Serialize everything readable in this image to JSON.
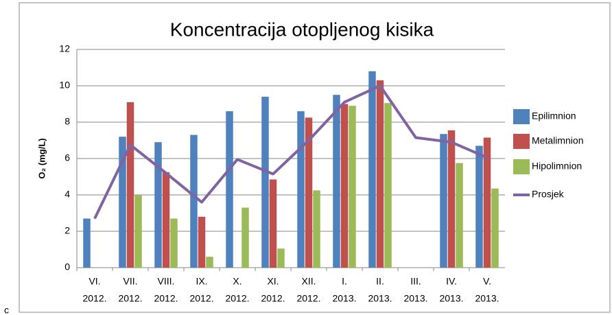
{
  "chart_data": {
    "type": "bar",
    "title": "Koncentracija otopljenog kisika",
    "y_label": "O₂ (mg/L)",
    "label": "c",
    "categories": [
      [
        "VI.",
        "2012."
      ],
      [
        "VII.",
        "2012."
      ],
      [
        "VIII.",
        "2012."
      ],
      [
        "IX.",
        "2012."
      ],
      [
        "X.",
        "2012."
      ],
      [
        "XI.",
        "2012."
      ],
      [
        "XII.",
        "2012."
      ],
      [
        "I.",
        "2013."
      ],
      [
        "II.",
        "2013."
      ],
      [
        "III.",
        "2013."
      ],
      [
        "IV.",
        "2013."
      ],
      [
        "V.",
        "2013."
      ]
    ],
    "series": [
      {
        "name": "Epilimnion",
        "type": "bar",
        "color": "#4f81bd",
        "values": [
          2.7,
          7.2,
          6.9,
          7.3,
          8.6,
          9.4,
          8.6,
          9.5,
          10.8,
          null,
          7.35,
          6.7
        ]
      },
      {
        "name": "Metalimnion",
        "type": "bar",
        "color": "#c0504d",
        "values": [
          null,
          9.1,
          5.25,
          2.8,
          null,
          4.85,
          8.25,
          9.0,
          10.3,
          null,
          7.55,
          7.15
        ]
      },
      {
        "name": "Hipolimnion",
        "type": "bar",
        "color": "#9bbb59",
        "values": [
          null,
          4.0,
          2.7,
          0.6,
          3.3,
          1.05,
          4.25,
          8.9,
          9.05,
          null,
          5.75,
          4.35
        ]
      },
      {
        "name": "Prosjek",
        "type": "line",
        "color": "#8064a2",
        "values": [
          2.7,
          6.75,
          5.2,
          3.6,
          5.95,
          5.15,
          7.0,
          9.1,
          10.0,
          7.15,
          6.9,
          6.05
        ]
      }
    ],
    "ylim": [
      0,
      12
    ],
    "yticks": [
      0,
      2,
      4,
      6,
      8,
      10,
      12
    ],
    "grid": true,
    "legend": "right"
  }
}
